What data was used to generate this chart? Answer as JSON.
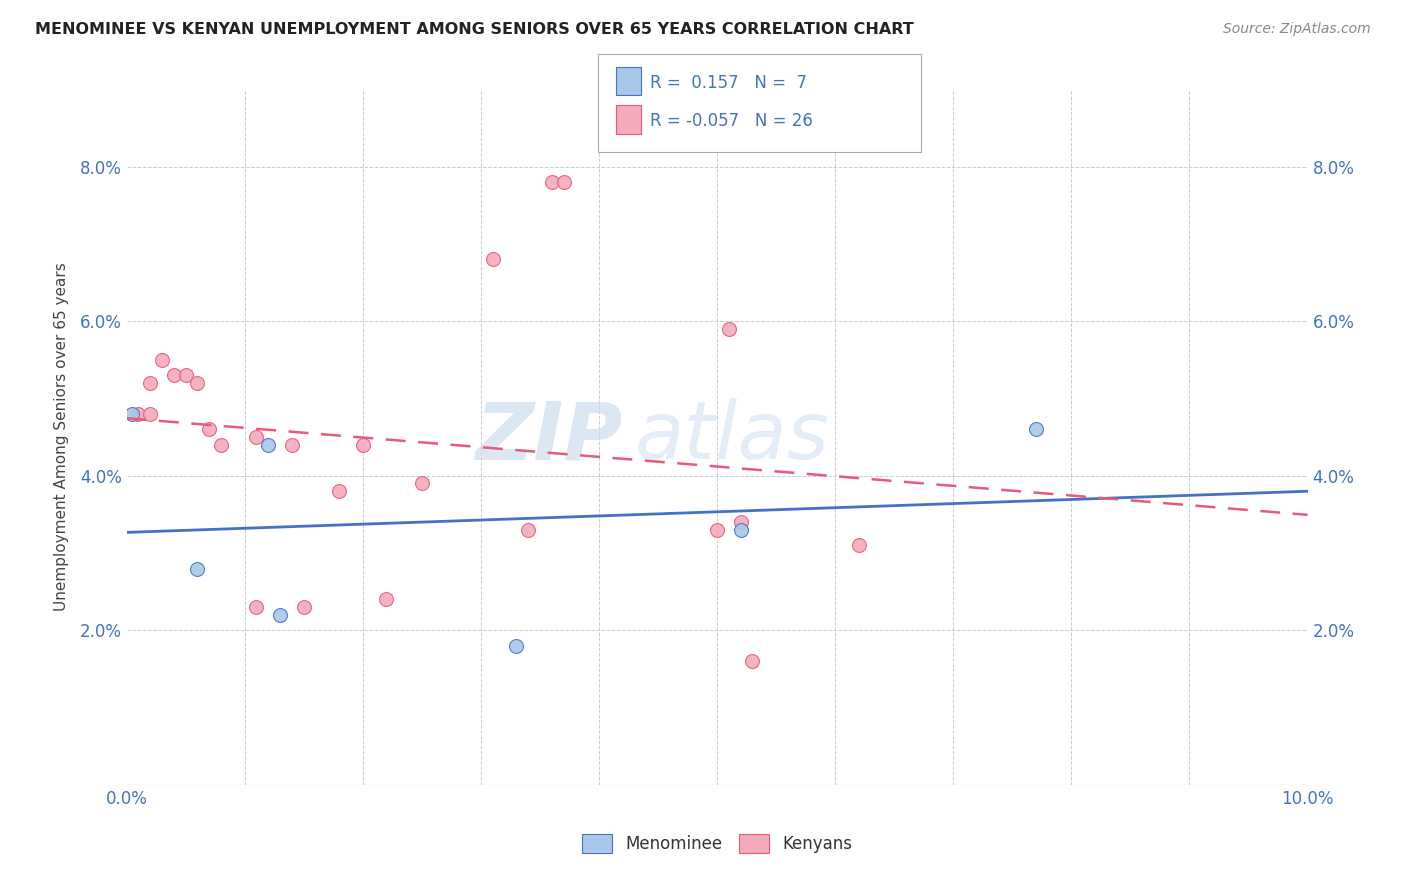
{
  "title": "MENOMINEE VS KENYAN UNEMPLOYMENT AMONG SENIORS OVER 65 YEARS CORRELATION CHART",
  "source": "Source: ZipAtlas.com",
  "ylabel": "Unemployment Among Seniors over 65 years",
  "xlim": [
    0.0,
    0.1
  ],
  "ylim": [
    0.0,
    0.09
  ],
  "xticks": [
    0.0,
    0.01,
    0.02,
    0.03,
    0.04,
    0.05,
    0.06,
    0.07,
    0.08,
    0.09,
    0.1
  ],
  "yticks": [
    0.0,
    0.01,
    0.02,
    0.03,
    0.04,
    0.05,
    0.06,
    0.07,
    0.08
  ],
  "xticklabels_show": [
    0.0,
    0.1
  ],
  "yticklabels_show": [
    0.02,
    0.04,
    0.06,
    0.08
  ],
  "menominee_x": [
    0.0005,
    0.006,
    0.012,
    0.013,
    0.033,
    0.052,
    0.077
  ],
  "menominee_y": [
    0.048,
    0.028,
    0.044,
    0.022,
    0.018,
    0.033,
    0.046
  ],
  "kenyans_x": [
    0.001,
    0.002,
    0.002,
    0.003,
    0.004,
    0.005,
    0.006,
    0.007,
    0.008,
    0.011,
    0.011,
    0.014,
    0.015,
    0.018,
    0.02,
    0.022,
    0.025,
    0.031,
    0.034,
    0.036,
    0.037,
    0.05,
    0.051,
    0.052,
    0.053,
    0.062
  ],
  "kenyans_y": [
    0.048,
    0.052,
    0.048,
    0.055,
    0.053,
    0.053,
    0.052,
    0.046,
    0.044,
    0.045,
    0.023,
    0.044,
    0.023,
    0.038,
    0.044,
    0.024,
    0.039,
    0.068,
    0.033,
    0.078,
    0.078,
    0.033,
    0.059,
    0.034,
    0.016,
    0.031
  ],
  "menominee_color": "#a8c8e8",
  "kenyans_color": "#f4aabb",
  "menominee_R": 0.157,
  "menominee_N": 7,
  "kenyans_R": -0.057,
  "kenyans_N": 26,
  "line_menominee_color": "#4472c4",
  "line_kenyans_color": "#e85a7a",
  "background_color": "#ffffff",
  "grid_color": "#cccccc",
  "watermark_zip": "ZIP",
  "watermark_atlas": "atlas",
  "marker_size": 100
}
